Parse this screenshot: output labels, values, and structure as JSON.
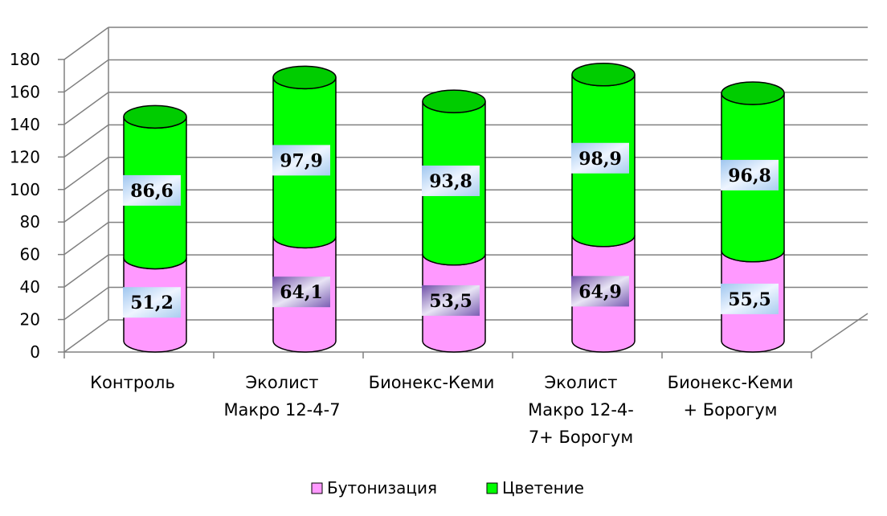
{
  "chart_data": {
    "type": "bar",
    "stacked": true,
    "style": "3d-cylinder",
    "categories": [
      [
        "Контроль"
      ],
      [
        "Эколист",
        "Макро 12-4-7"
      ],
      [
        "Бионекс-Кеми"
      ],
      [
        "Эколист",
        "Макро 12-4-",
        "7+ Борогум"
      ],
      [
        "Бионекс-Кеми",
        "+ Борогум"
      ]
    ],
    "series": [
      {
        "name": "Бутонизация",
        "color": "#ff99ff",
        "values": [
          51.2,
          64.1,
          53.5,
          64.9,
          55.5
        ],
        "labels": [
          "51,2",
          "64,1",
          "53,5",
          "64,9",
          "55,5"
        ]
      },
      {
        "name": "Цветение",
        "color": "#00ff00",
        "values": [
          86.6,
          97.9,
          93.8,
          98.9,
          96.8
        ],
        "labels": [
          "86,6",
          "97,9",
          "93,8",
          "98,9",
          "96,8"
        ]
      }
    ],
    "yticks": [
      "0",
      "20",
      "40",
      "60",
      "80",
      "100",
      "120",
      "140",
      "160",
      "180"
    ],
    "ylim": [
      0,
      180
    ],
    "grid": true,
    "legend_position": "bottom"
  }
}
